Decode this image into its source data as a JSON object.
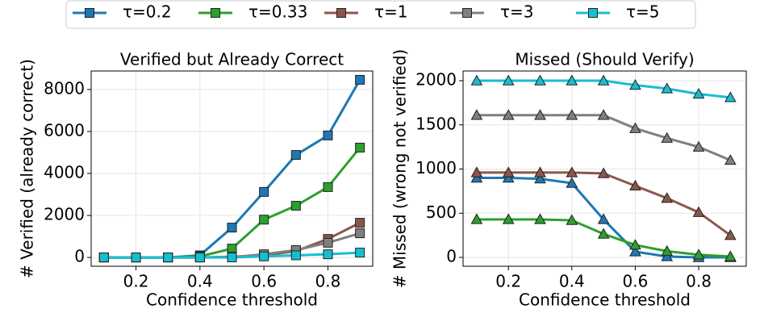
{
  "chart_data": [
    {
      "type": "line",
      "title": "Verified but Already Correct",
      "xlabel": "Confidence threshold",
      "ylabel": "# Verified (already correct)",
      "x": [
        0.1,
        0.2,
        0.3,
        0.4,
        0.5,
        0.6,
        0.7,
        0.8,
        0.9
      ],
      "xlim": [
        0.06,
        0.94
      ],
      "xticks": [
        0.2,
        0.4,
        0.6,
        0.8
      ],
      "ylim": [
        -420,
        8880
      ],
      "yticks": [
        0,
        2000,
        4000,
        6000,
        8000
      ],
      "grid": true,
      "marker": "square",
      "series": [
        {
          "name": "τ=0.2",
          "color": "#1f77b4",
          "values": [
            0,
            0,
            0,
            100,
            1420,
            3120,
            4880,
            5810,
            8460
          ]
        },
        {
          "name": "τ=0.33",
          "color": "#2ca02c",
          "values": [
            0,
            0,
            0,
            50,
            420,
            1800,
            2460,
            3350,
            5230
          ]
        },
        {
          "name": "τ=1",
          "color": "#8c564b",
          "values": [
            0,
            0,
            0,
            0,
            30,
            100,
            300,
            880,
            1650
          ]
        },
        {
          "name": "τ=3",
          "color": "#7f7f7f",
          "values": [
            0,
            0,
            0,
            0,
            10,
            150,
            350,
            700,
            1150
          ]
        },
        {
          "name": "τ=5",
          "color": "#17becf",
          "values": [
            0,
            0,
            0,
            0,
            0,
            50,
            100,
            150,
            230
          ]
        }
      ]
    },
    {
      "type": "line",
      "title": "Missed (Should Verify)",
      "xlabel": "Confidence threshold",
      "ylabel": "# Missed (wrong not verified)",
      "x": [
        0.1,
        0.2,
        0.3,
        0.4,
        0.5,
        0.6,
        0.7,
        0.8,
        0.9
      ],
      "xlim": [
        0.057,
        0.95
      ],
      "xticks": [
        0.2,
        0.4,
        0.6,
        0.8
      ],
      "ylim": [
        -100,
        2110
      ],
      "yticks": [
        0,
        500,
        1000,
        1500,
        2000
      ],
      "grid": true,
      "marker": "triangle",
      "series": [
        {
          "color": "#1f77b4",
          "values": [
            900,
            900,
            890,
            840,
            430,
            65,
            10,
            0,
            0
          ]
        },
        {
          "color": "#2ca02c",
          "values": [
            430,
            430,
            430,
            420,
            265,
            140,
            70,
            30,
            10
          ]
        },
        {
          "color": "#8c564b",
          "values": [
            960,
            960,
            960,
            960,
            950,
            810,
            670,
            510,
            250
          ]
        },
        {
          "color": "#7f7f7f",
          "values": [
            1610,
            1610,
            1610,
            1610,
            1610,
            1460,
            1350,
            1250,
            1100
          ]
        },
        {
          "color": "#17becf",
          "values": [
            2000,
            2000,
            2000,
            2000,
            2000,
            1950,
            1910,
            1850,
            1810
          ]
        }
      ]
    }
  ]
}
